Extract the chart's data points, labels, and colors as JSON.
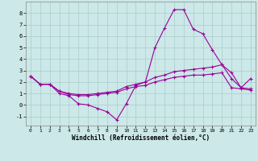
{
  "xlabel": "Windchill (Refroidissement éolien,°C)",
  "background_color": "#cce8e8",
  "grid_color": "#aacccc",
  "line_color": "#990099",
  "x": [
    0,
    1,
    2,
    3,
    4,
    5,
    6,
    7,
    8,
    9,
    10,
    11,
    12,
    13,
    14,
    15,
    16,
    17,
    18,
    19,
    20,
    21,
    22,
    23
  ],
  "line1": [
    2.5,
    1.8,
    1.8,
    1.0,
    0.8,
    0.1,
    0.0,
    -0.3,
    -0.6,
    -1.3,
    0.1,
    1.7,
    2.0,
    5.0,
    6.7,
    8.3,
    8.3,
    6.6,
    6.2,
    4.8,
    3.5,
    2.3,
    1.5,
    2.3
  ],
  "line2": [
    2.5,
    1.8,
    1.8,
    1.2,
    1.0,
    0.9,
    0.9,
    1.0,
    1.1,
    1.2,
    1.6,
    1.8,
    2.0,
    2.4,
    2.6,
    2.9,
    3.0,
    3.1,
    3.2,
    3.3,
    3.5,
    2.8,
    1.5,
    1.4
  ],
  "line3": [
    2.5,
    1.8,
    1.8,
    1.2,
    0.9,
    0.8,
    0.8,
    0.9,
    1.0,
    1.1,
    1.4,
    1.6,
    1.7,
    2.0,
    2.2,
    2.4,
    2.5,
    2.6,
    2.6,
    2.7,
    2.8,
    1.5,
    1.4,
    1.3
  ],
  "ylim": [
    -1.8,
    9.0
  ],
  "xlim": [
    -0.5,
    23.5
  ],
  "yticks": [
    -1,
    0,
    1,
    2,
    3,
    4,
    5,
    6,
    7,
    8
  ],
  "xticks": [
    0,
    1,
    2,
    3,
    4,
    5,
    6,
    7,
    8,
    9,
    10,
    11,
    12,
    13,
    14,
    15,
    16,
    17,
    18,
    19,
    20,
    21,
    22,
    23
  ]
}
